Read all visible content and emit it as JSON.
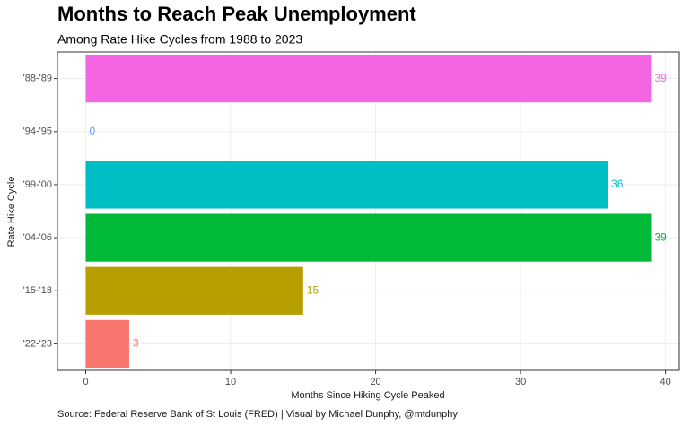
{
  "chart_data": {
    "type": "bar",
    "orientation": "horizontal",
    "title": "Months to Reach Peak Unemployment",
    "subtitle": "Among Rate Hike Cycles from 1988 to 2023",
    "x_label": "Months Since Hiking Cycle Peaked",
    "y_label": "Rate Hike Cycle",
    "caption": "Source: Federal Reserve Bank of St Louis (FRED) | Visual by Michael Dunphy, @mtdunphy",
    "categories": [
      "'88-'89",
      "'94-'95",
      "'99-'00",
      "'04-'06",
      "'15-'18",
      "'22-'23"
    ],
    "values": [
      39,
      0,
      36,
      39,
      15,
      3
    ],
    "colors": [
      "#F564E3",
      "#619CFF",
      "#00BFC4",
      "#00BA38",
      "#B79F00",
      "#F8766D"
    ],
    "xlim": [
      -1.95,
      40.95
    ],
    "xticks": [
      0,
      10,
      20,
      30,
      40
    ],
    "grid": true
  }
}
